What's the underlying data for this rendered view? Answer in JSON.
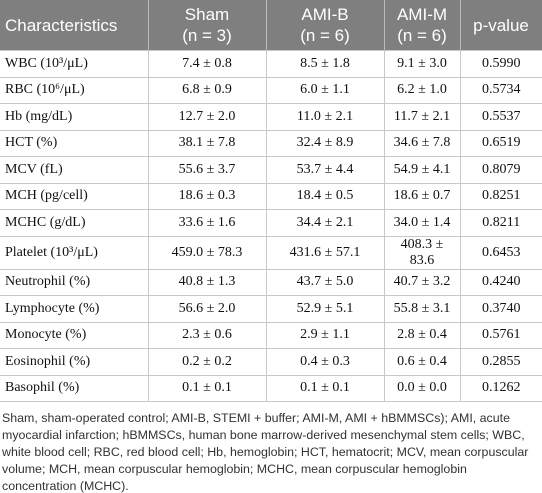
{
  "table": {
    "header": [
      [
        "Characteristics"
      ],
      [
        "Sham",
        "(n = 3)"
      ],
      [
        "AMI-B",
        "(n = 6)"
      ],
      [
        "AMI-M",
        "(n = 6)"
      ],
      [
        "p-value"
      ]
    ],
    "rows": [
      [
        "WBC (10³/μL)",
        "7.4 ± 0.8",
        "8.5 ± 1.8",
        "9.1 ± 3.0",
        "0.5990"
      ],
      [
        "RBC (10⁶/μL)",
        "6.8 ± 0.9",
        "6.0 ± 1.1",
        "6.2 ± 1.0",
        "0.5734"
      ],
      [
        "Hb (mg/dL)",
        "12.7 ± 2.0",
        "11.0 ± 2.1",
        "11.7 ± 2.1",
        "0.5537"
      ],
      [
        "HCT (%)",
        "38.1 ± 7.8",
        "32.4 ± 8.9",
        "34.6 ± 7.8",
        "0.6519"
      ],
      [
        "MCV (fL)",
        "55.6 ± 3.7",
        "53.7 ± 4.4",
        "54.9 ± 4.1",
        "0.8079"
      ],
      [
        "MCH (pg/cell)",
        "18.6 ± 0.3",
        "18.4 ± 0.5",
        "18.6 ± 0.7",
        "0.8251"
      ],
      [
        "MCHC (g/dL)",
        "33.6 ± 1.6",
        "34.4 ± 2.1",
        "34.0 ± 1.4",
        "0.8211"
      ],
      [
        "Platelet (10³/μL)",
        "459.0 ± 78.3",
        "431.6 ± 57.1",
        "408.3 ± 83.6",
        "0.6453"
      ],
      [
        "Neutrophil (%)",
        "40.8 ± 1.3",
        "43.7 ± 5.0",
        "40.7 ± 3.2",
        "0.4240"
      ],
      [
        "Lymphocyte (%)",
        "56.6 ± 2.0",
        "52.9 ± 5.1",
        "55.8 ± 3.1",
        "0.3740"
      ],
      [
        "Monocyte (%)",
        "2.3 ± 0.6",
        "2.9 ± 1.1",
        "2.8 ± 0.4",
        "0.5761"
      ],
      [
        "Eosinophil (%)",
        "0.2 ± 0.2",
        "0.4 ± 0.3",
        "0.6 ± 0.4",
        "0.2855"
      ],
      [
        "Basophil (%)",
        "0.1 ± 0.1",
        "0.1 ± 0.1",
        "0.0 ± 0.0",
        "0.1262"
      ]
    ]
  },
  "footnote": "Sham, sham-operated control; AMI-B, STEMI + buffer; AMI-M, AMI + hBMMSCs); AMI, acute myocardial infarction; hBMMSCs, human bone marrow-derived mesenchymal stem cells; WBC, white blood cell; RBC, red blood cell; Hb, hemoglobin; HCT, hematocrit; MCV, mean corpuscular volume; MCH, mean corpuscular hemoglobin; MCHC, mean corpuscular hemoglobin concentration (MCHC)."
}
